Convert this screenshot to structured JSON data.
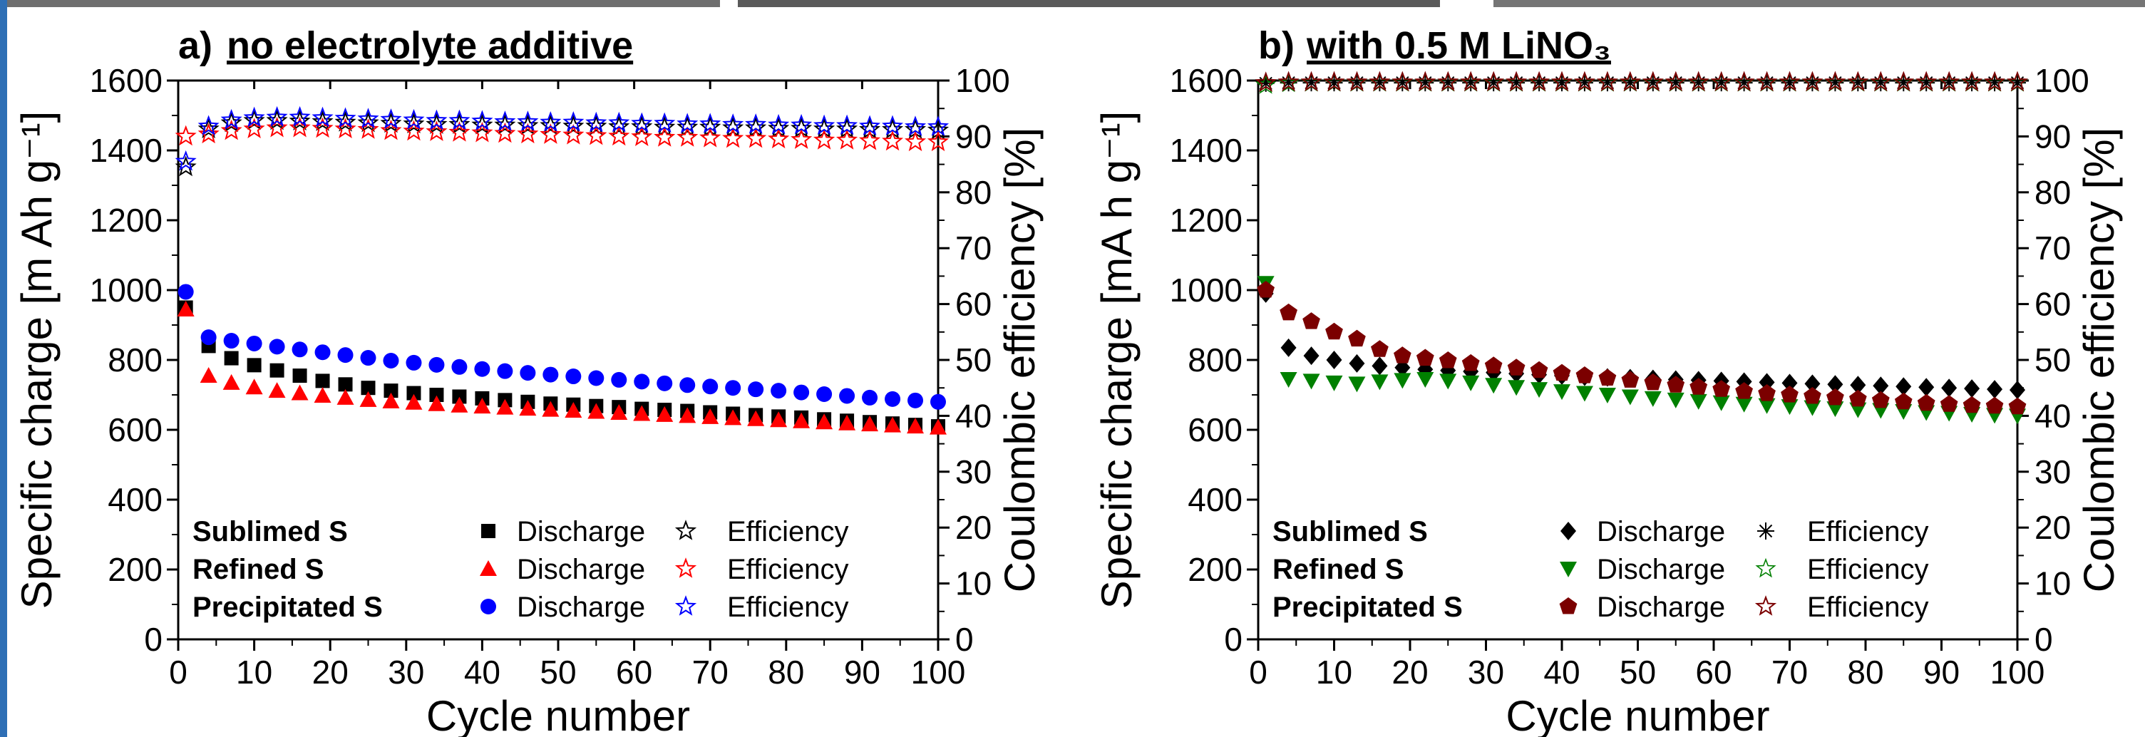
{
  "chart_data": [
    {
      "type": "scatter",
      "panel_label": "a)",
      "title": "no electrolyte additive",
      "xlabel": "Cycle number",
      "ylabel_left": "Specific charge [m Ah g⁻¹]",
      "ylabel_right": "Coulombic efficiency [%]",
      "xlim": [
        0,
        100
      ],
      "ylim_left": [
        0,
        1600
      ],
      "ylim_right": [
        0,
        100
      ],
      "x_ticks": [
        "0",
        "10",
        "20",
        "30",
        "40",
        "50",
        "60",
        "70",
        "80",
        "90",
        "100"
      ],
      "y_ticks_left": [
        "0",
        "200",
        "400",
        "600",
        "800",
        "1000",
        "1200",
        "1400",
        "1600"
      ],
      "y_ticks_right": [
        "0",
        "10",
        "20",
        "30",
        "40",
        "50",
        "60",
        "70",
        "80",
        "90",
        "100"
      ],
      "grid": false,
      "legend_position": "bottom-left",
      "series": [
        {
          "sample": "Sublimed S",
          "kind": "Discharge",
          "axis": "left",
          "marker": "square",
          "color": "#000000",
          "x": [
            1,
            4,
            7,
            10,
            13,
            16,
            19,
            22,
            25,
            28,
            31,
            34,
            37,
            40,
            43,
            46,
            49,
            52,
            55,
            58,
            61,
            64,
            67,
            70,
            73,
            76,
            79,
            82,
            85,
            88,
            91,
            94,
            97,
            100
          ],
          "y": [
            950,
            840,
            805,
            785,
            770,
            755,
            740,
            730,
            720,
            712,
            705,
            700,
            695,
            690,
            685,
            680,
            675,
            672,
            668,
            665,
            660,
            657,
            654,
            650,
            646,
            642,
            638,
            635,
            630,
            626,
            622,
            618,
            614,
            610
          ]
        },
        {
          "sample": "Sublimed S",
          "kind": "Efficiency",
          "axis": "right",
          "marker": "star",
          "color": "#000000",
          "x": [
            1,
            4,
            7,
            10,
            13,
            16,
            19,
            22,
            25,
            28,
            31,
            34,
            37,
            40,
            43,
            46,
            49,
            52,
            55,
            58,
            61,
            64,
            67,
            70,
            73,
            76,
            79,
            82,
            85,
            88,
            91,
            94,
            97,
            100
          ],
          "y": [
            84.5,
            91.3,
            92.4,
            92.8,
            92.8,
            92.7,
            92.6,
            92.5,
            92.4,
            92.3,
            92.2,
            92.1,
            92.1,
            92.0,
            92.0,
            91.9,
            91.9,
            91.8,
            91.8,
            91.7,
            91.7,
            91.6,
            91.6,
            91.6,
            91.5,
            91.5,
            91.4,
            91.4,
            91.3,
            91.3,
            91.2,
            91.2,
            91.2,
            91.1
          ]
        },
        {
          "sample": "Refined S",
          "kind": "Discharge",
          "axis": "left",
          "marker": "triangle-up",
          "color": "#ff0000",
          "x": [
            1,
            4,
            7,
            10,
            13,
            16,
            19,
            22,
            25,
            28,
            31,
            34,
            37,
            40,
            43,
            46,
            49,
            52,
            55,
            58,
            61,
            64,
            67,
            70,
            73,
            76,
            79,
            82,
            85,
            88,
            91,
            94,
            97,
            100
          ],
          "y": [
            945,
            755,
            735,
            722,
            712,
            705,
            698,
            692,
            686,
            682,
            678,
            674,
            670,
            667,
            664,
            661,
            658,
            655,
            652,
            649,
            646,
            643,
            640,
            637,
            634,
            631,
            628,
            625,
            622,
            619,
            616,
            613,
            610,
            607
          ]
        },
        {
          "sample": "Refined S",
          "kind": "Efficiency",
          "axis": "right",
          "marker": "star",
          "color": "#ff0000",
          "x": [
            1,
            4,
            7,
            10,
            13,
            16,
            19,
            22,
            25,
            28,
            31,
            34,
            37,
            40,
            43,
            46,
            49,
            52,
            55,
            58,
            61,
            64,
            67,
            70,
            73,
            76,
            79,
            82,
            85,
            88,
            91,
            94,
            97,
            100
          ],
          "y": [
            90.0,
            90.4,
            91.0,
            91.3,
            91.5,
            91.5,
            91.4,
            91.3,
            91.2,
            91.0,
            90.9,
            90.8,
            90.7,
            90.6,
            90.5,
            90.4,
            90.3,
            90.2,
            90.1,
            90.0,
            89.9,
            89.8,
            89.8,
            89.7,
            89.6,
            89.6,
            89.5,
            89.4,
            89.3,
            89.3,
            89.2,
            89.1,
            89.0,
            89.0
          ]
        },
        {
          "sample": "Precipitated S",
          "kind": "Discharge",
          "axis": "left",
          "marker": "circle",
          "color": "#0000ff",
          "x": [
            1,
            4,
            7,
            10,
            13,
            16,
            19,
            22,
            25,
            28,
            31,
            34,
            37,
            40,
            43,
            46,
            49,
            52,
            55,
            58,
            61,
            64,
            67,
            70,
            73,
            76,
            79,
            82,
            85,
            88,
            91,
            94,
            97,
            100
          ],
          "y": [
            995,
            865,
            855,
            847,
            838,
            830,
            822,
            814,
            806,
            798,
            792,
            786,
            780,
            774,
            768,
            763,
            758,
            753,
            748,
            743,
            738,
            733,
            728,
            724,
            720,
            716,
            712,
            707,
            702,
            697,
            692,
            688,
            684,
            680
          ]
        },
        {
          "sample": "Precipitated S",
          "kind": "Efficiency",
          "axis": "right",
          "marker": "star",
          "color": "#0000ff",
          "x": [
            1,
            4,
            7,
            10,
            13,
            16,
            19,
            22,
            25,
            28,
            31,
            34,
            37,
            40,
            43,
            46,
            49,
            52,
            55,
            58,
            61,
            64,
            67,
            70,
            73,
            76,
            79,
            82,
            85,
            88,
            91,
            94,
            97,
            100
          ],
          "y": [
            85.5,
            91.8,
            92.9,
            93.3,
            93.4,
            93.4,
            93.3,
            93.2,
            93.1,
            93.0,
            92.9,
            92.8,
            92.8,
            92.7,
            92.6,
            92.6,
            92.5,
            92.5,
            92.4,
            92.4,
            92.3,
            92.3,
            92.2,
            92.2,
            92.1,
            92.1,
            92.0,
            92.0,
            91.9,
            91.9,
            91.8,
            91.8,
            91.7,
            91.7
          ]
        }
      ],
      "legend": [
        {
          "name": "Sublimed S",
          "discharge_label": "Discharge",
          "efficiency_label": "Efficiency"
        },
        {
          "name": "Refined S",
          "discharge_label": "Discharge",
          "efficiency_label": "Efficiency"
        },
        {
          "name": "Precipitated S",
          "discharge_label": "Discharge",
          "efficiency_label": "Efficiency"
        }
      ]
    },
    {
      "type": "scatter",
      "panel_label": "b)",
      "title": "with 0.5 M LiNO₃",
      "xlabel": "Cycle number",
      "ylabel_left": "Specific charge [mA h g⁻¹]",
      "ylabel_right": "Coulombic efficiency [%]",
      "xlim": [
        0,
        100
      ],
      "ylim_left": [
        0,
        1600
      ],
      "ylim_right": [
        0,
        100
      ],
      "x_ticks": [
        "0",
        "10",
        "20",
        "30",
        "40",
        "50",
        "60",
        "70",
        "80",
        "90",
        "100"
      ],
      "y_ticks_left": [
        "0",
        "200",
        "400",
        "600",
        "800",
        "1000",
        "1200",
        "1400",
        "1600"
      ],
      "y_ticks_right": [
        "0",
        "10",
        "20",
        "30",
        "40",
        "50",
        "60",
        "70",
        "80",
        "90",
        "100"
      ],
      "grid": false,
      "legend_position": "bottom-left",
      "series": [
        {
          "sample": "Sublimed S",
          "kind": "Discharge",
          "axis": "left",
          "marker": "diamond",
          "color": "#000000",
          "x": [
            1,
            4,
            7,
            10,
            13,
            16,
            19,
            22,
            25,
            28,
            31,
            34,
            37,
            40,
            43,
            46,
            49,
            52,
            55,
            58,
            61,
            64,
            67,
            70,
            73,
            76,
            79,
            82,
            85,
            88,
            91,
            94,
            97,
            100
          ],
          "y": [
            990,
            835,
            812,
            800,
            790,
            783,
            778,
            773,
            770,
            767,
            764,
            761,
            758,
            755,
            752,
            750,
            748,
            746,
            744,
            742,
            740,
            738,
            736,
            734,
            732,
            730,
            728,
            726,
            724,
            722,
            720,
            718,
            716,
            714
          ]
        },
        {
          "sample": "Sublimed S",
          "kind": "Efficiency",
          "axis": "right",
          "marker": "asterisk",
          "color": "#000000",
          "x": [
            1,
            4,
            7,
            10,
            13,
            16,
            19,
            22,
            25,
            28,
            31,
            34,
            37,
            40,
            43,
            46,
            49,
            52,
            55,
            58,
            61,
            64,
            67,
            70,
            73,
            76,
            79,
            82,
            85,
            88,
            91,
            94,
            97,
            100
          ],
          "y": [
            99.5,
            99.6,
            99.6,
            99.6,
            99.6,
            99.6,
            99.6,
            99.6,
            99.6,
            99.6,
            99.6,
            99.6,
            99.6,
            99.6,
            99.6,
            99.6,
            99.6,
            99.6,
            99.6,
            99.6,
            99.6,
            99.6,
            99.6,
            99.6,
            99.6,
            99.6,
            99.6,
            99.6,
            99.6,
            99.6,
            99.6,
            99.6,
            99.6,
            99.6
          ]
        },
        {
          "sample": "Refined S",
          "kind": "Discharge",
          "axis": "left",
          "marker": "triangle-down",
          "color": "#008000",
          "x": [
            1,
            4,
            7,
            10,
            13,
            16,
            19,
            22,
            25,
            28,
            31,
            34,
            37,
            40,
            43,
            46,
            49,
            52,
            55,
            58,
            61,
            64,
            67,
            70,
            73,
            76,
            79,
            82,
            85,
            88,
            91,
            94,
            97,
            100
          ],
          "y": [
            1020,
            745,
            740,
            735,
            732,
            738,
            742,
            745,
            740,
            735,
            728,
            722,
            716,
            710,
            705,
            700,
            695,
            690,
            686,
            682,
            678,
            674,
            670,
            667,
            664,
            661,
            658,
            656,
            653,
            650,
            648,
            645,
            642,
            640
          ]
        },
        {
          "sample": "Refined S",
          "kind": "Efficiency",
          "axis": "right",
          "marker": "star-open",
          "color": "#008000",
          "x": [
            1,
            4,
            7,
            10,
            13,
            16,
            19,
            22,
            25,
            28,
            31,
            34,
            37,
            40,
            43,
            46,
            49,
            52,
            55,
            58,
            61,
            64,
            67,
            70,
            73,
            76,
            79,
            82,
            85,
            88,
            91,
            94,
            97,
            100
          ],
          "y": [
            99.2,
            99.5,
            99.6,
            99.6,
            99.6,
            99.6,
            99.6,
            99.6,
            99.6,
            99.6,
            99.6,
            99.6,
            99.6,
            99.6,
            99.6,
            99.6,
            99.6,
            99.6,
            99.6,
            99.6,
            99.6,
            99.6,
            99.6,
            99.6,
            99.6,
            99.6,
            99.6,
            99.6,
            99.6,
            99.6,
            99.6,
            99.6,
            99.6,
            99.6
          ]
        },
        {
          "sample": "Precipitated S",
          "kind": "Discharge",
          "axis": "left",
          "marker": "pentagon",
          "color": "#7b0000",
          "x": [
            1,
            4,
            7,
            10,
            13,
            16,
            19,
            22,
            25,
            28,
            31,
            34,
            37,
            40,
            43,
            46,
            49,
            52,
            55,
            58,
            61,
            64,
            67,
            70,
            73,
            76,
            79,
            82,
            85,
            88,
            91,
            94,
            97,
            100
          ],
          "y": [
            1000,
            935,
            910,
            880,
            860,
            830,
            812,
            805,
            798,
            790,
            783,
            777,
            770,
            762,
            755,
            748,
            742,
            735,
            728,
            722,
            716,
            710,
            704,
            700,
            696,
            692,
            688,
            684,
            680,
            676,
            673,
            670,
            668,
            666
          ]
        },
        {
          "sample": "Precipitated S",
          "kind": "Efficiency",
          "axis": "right",
          "marker": "star",
          "color": "#7b0000",
          "x": [
            1,
            4,
            7,
            10,
            13,
            16,
            19,
            22,
            25,
            28,
            31,
            34,
            37,
            40,
            43,
            46,
            49,
            52,
            55,
            58,
            61,
            64,
            67,
            70,
            73,
            76,
            79,
            82,
            85,
            88,
            91,
            94,
            97,
            100
          ],
          "y": [
            99.6,
            99.7,
            99.7,
            99.7,
            99.7,
            99.7,
            99.7,
            99.7,
            99.7,
            99.7,
            99.7,
            99.7,
            99.7,
            99.7,
            99.7,
            99.7,
            99.7,
            99.7,
            99.7,
            99.7,
            99.7,
            99.7,
            99.7,
            99.7,
            99.7,
            99.7,
            99.7,
            99.7,
            99.7,
            99.7,
            99.7,
            99.7,
            99.7,
            99.7
          ]
        }
      ],
      "legend": [
        {
          "name": "Sublimed S",
          "discharge_label": "Discharge",
          "efficiency_label": "Efficiency"
        },
        {
          "name": "Refined S",
          "discharge_label": "Discharge",
          "efficiency_label": "Efficiency"
        },
        {
          "name": "Precipitated S",
          "discharge_label": "Discharge",
          "efficiency_label": "Efficiency"
        }
      ]
    }
  ]
}
